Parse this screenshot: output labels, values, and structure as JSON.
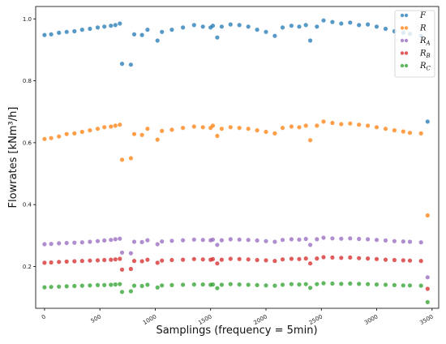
{
  "chart_data": {
    "type": "scatter",
    "xlabel": "Samplings (frequency = 5min)",
    "ylabel": "Flowrates [kNm³/h]",
    "xlim": [
      -80,
      3560
    ],
    "ylim": [
      0.065,
      1.04
    ],
    "xticks": [
      0,
      500,
      1000,
      1500,
      2000,
      2500,
      3000,
      3500
    ],
    "yticks": [
      0.2,
      0.4,
      0.6,
      0.8,
      1.0
    ],
    "ytick_labels": [
      "0.2",
      "0.4",
      "0.6",
      "0.8",
      "1.0"
    ],
    "legend_position": "top-right",
    "series": [
      {
        "name": "F",
        "color": "#1f77b4",
        "values": [
          0.948,
          0.95,
          0.955,
          0.958,
          0.96,
          0.965,
          0.968,
          0.972,
          0.975,
          0.978,
          0.98,
          0.985,
          0.855,
          0.852,
          0.95,
          0.948,
          0.965,
          0.93,
          0.958,
          0.965,
          0.972,
          0.98,
          0.975,
          0.972,
          0.978,
          0.94,
          0.975,
          0.982,
          0.98,
          0.975,
          0.965,
          0.958,
          0.945,
          0.972,
          0.978,
          0.975,
          0.98,
          0.93,
          0.975,
          0.995,
          0.99,
          0.985,
          0.988,
          0.98,
          0.982,
          0.975,
          0.968,
          0.96,
          0.955,
          0.952,
          0.945,
          0.668
        ]
      },
      {
        "name": "R",
        "color": "#ff7f0e",
        "values": [
          0.612,
          0.615,
          0.62,
          0.628,
          0.63,
          0.635,
          0.64,
          0.645,
          0.65,
          0.652,
          0.655,
          0.658,
          0.545,
          0.55,
          0.628,
          0.625,
          0.645,
          0.61,
          0.638,
          0.642,
          0.648,
          0.652,
          0.65,
          0.648,
          0.655,
          0.622,
          0.645,
          0.65,
          0.648,
          0.645,
          0.64,
          0.635,
          0.63,
          0.648,
          0.652,
          0.65,
          0.655,
          0.608,
          0.655,
          0.668,
          0.664,
          0.66,
          0.662,
          0.658,
          0.655,
          0.65,
          0.645,
          0.64,
          0.636,
          0.632,
          0.63,
          0.365
        ]
      },
      {
        "name": "R_A",
        "color": "#9467bd",
        "values": [
          0.272,
          0.273,
          0.275,
          0.276,
          0.277,
          0.278,
          0.28,
          0.282,
          0.284,
          0.286,
          0.288,
          0.29,
          0.245,
          0.243,
          0.28,
          0.279,
          0.285,
          0.272,
          0.281,
          0.283,
          0.285,
          0.287,
          0.286,
          0.285,
          0.287,
          0.27,
          0.285,
          0.288,
          0.287,
          0.286,
          0.284,
          0.282,
          0.28,
          0.286,
          0.288,
          0.287,
          0.289,
          0.27,
          0.288,
          0.293,
          0.291,
          0.29,
          0.291,
          0.289,
          0.288,
          0.286,
          0.284,
          0.282,
          0.281,
          0.28,
          0.278,
          0.165
        ]
      },
      {
        "name": "R_B",
        "color": "#d62728",
        "values": [
          0.212,
          0.213,
          0.215,
          0.216,
          0.217,
          0.218,
          0.219,
          0.22,
          0.221,
          0.222,
          0.223,
          0.225,
          0.19,
          0.192,
          0.218,
          0.217,
          0.222,
          0.212,
          0.219,
          0.221,
          0.222,
          0.224,
          0.223,
          0.222,
          0.224,
          0.21,
          0.222,
          0.225,
          0.224,
          0.223,
          0.221,
          0.22,
          0.218,
          0.223,
          0.225,
          0.224,
          0.226,
          0.21,
          0.226,
          0.23,
          0.229,
          0.228,
          0.229,
          0.227,
          0.226,
          0.224,
          0.222,
          0.221,
          0.22,
          0.219,
          0.218,
          0.128
        ]
      },
      {
        "name": "R_C",
        "color": "#2ca02c",
        "values": [
          0.133,
          0.134,
          0.135,
          0.136,
          0.137,
          0.138,
          0.139,
          0.14,
          0.14,
          0.141,
          0.142,
          0.143,
          0.118,
          0.12,
          0.138,
          0.137,
          0.141,
          0.132,
          0.139,
          0.14,
          0.141,
          0.142,
          0.142,
          0.141,
          0.142,
          0.13,
          0.141,
          0.143,
          0.142,
          0.141,
          0.14,
          0.139,
          0.138,
          0.141,
          0.143,
          0.142,
          0.143,
          0.131,
          0.143,
          0.146,
          0.145,
          0.144,
          0.145,
          0.144,
          0.143,
          0.142,
          0.141,
          0.14,
          0.139,
          0.139,
          0.138,
          0.085
        ]
      }
    ],
    "x": [
      0,
      60,
      130,
      200,
      270,
      340,
      410,
      480,
      540,
      600,
      640,
      680,
      700,
      780,
      810,
      880,
      930,
      1020,
      1060,
      1150,
      1250,
      1350,
      1430,
      1500,
      1520,
      1560,
      1600,
      1680,
      1760,
      1840,
      1920,
      2000,
      2080,
      2150,
      2230,
      2300,
      2360,
      2400,
      2460,
      2520,
      2600,
      2680,
      2760,
      2840,
      2920,
      3000,
      3080,
      3160,
      3240,
      3300,
      3400,
      3460
    ]
  },
  "legend": {
    "entries": [
      "F",
      "R",
      "R",
      "R",
      "R"
    ],
    "subscripts": [
      "",
      "",
      "A",
      "B",
      "C"
    ]
  }
}
